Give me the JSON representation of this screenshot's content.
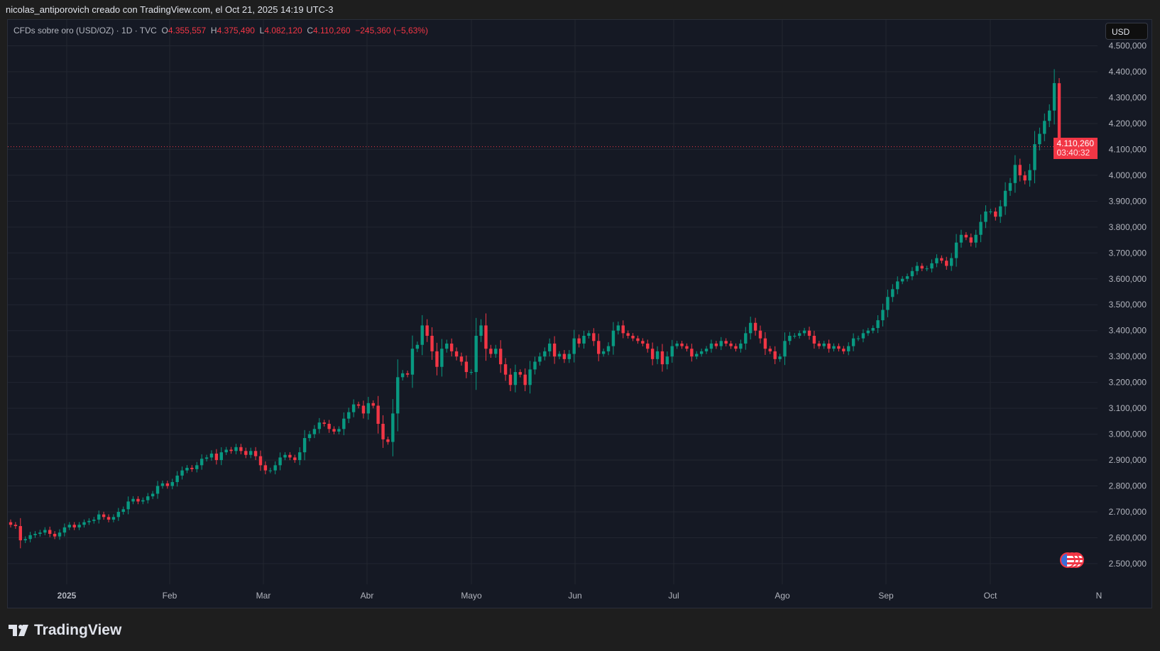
{
  "attribution": "nicolas_antiporovich creado con TradingView.com, el Oct 21, 2025 14:19 UTC-3",
  "legend": {
    "symbol": "CFDs sobre oro (USD/OZ) · 1D · TVC",
    "o_label": "O",
    "o": "4.355,557",
    "h_label": "H",
    "h": "4.375,490",
    "l_label": "L",
    "l": "4.082,120",
    "c_label": "C",
    "c": "4.110,260",
    "change": "−245,360 (−5,63%)"
  },
  "currency_button": "USD",
  "last_price": {
    "value": "4.110,260",
    "countdown": "03:40:32",
    "price": 4110.26
  },
  "brand": "TradingView",
  "colors": {
    "up": "#089981",
    "down": "#f23645",
    "grid": "#222631",
    "bg": "#151924"
  },
  "chart_data": {
    "type": "candlestick",
    "ylim": [
      2400,
      4530
    ],
    "yticks": [
      2500,
      2600,
      2700,
      2800,
      2900,
      3000,
      3100,
      3200,
      3300,
      3400,
      3500,
      3600,
      3700,
      3800,
      3900,
      4000,
      4100,
      4200,
      4300,
      4400,
      4500
    ],
    "ytick_labels": [
      "2.500,000",
      "2.600,000",
      "2.700,000",
      "2.800,000",
      "2.900,000",
      "3.000,000",
      "3.100,000",
      "3.200,000",
      "3.300,000",
      "3.400,000",
      "3.500,000",
      "3.600,000",
      "3.700,000",
      "3.800,000",
      "3.900,000",
      "4.000,000",
      "4.100,000",
      "4.200,000",
      "4.300,000",
      "4.400,000",
      "4.500,000"
    ],
    "xtick_labels": [
      "2025",
      "Feb",
      "Mar",
      "Abr",
      "Mayo",
      "Jun",
      "Jul",
      "Ago",
      "Sep",
      "Oct",
      "N"
    ],
    "first_open": 2660,
    "closes": [
      2650,
      2645,
      2590,
      2595,
      2610,
      2615,
      2620,
      2630,
      2615,
      2605,
      2620,
      2640,
      2650,
      2640,
      2650,
      2660,
      2665,
      2670,
      2690,
      2680,
      2670,
      2680,
      2700,
      2710,
      2740,
      2750,
      2740,
      2745,
      2760,
      2770,
      2800,
      2810,
      2800,
      2815,
      2840,
      2860,
      2870,
      2865,
      2880,
      2905,
      2910,
      2925,
      2900,
      2930,
      2940,
      2935,
      2950,
      2935,
      2920,
      2935,
      2915,
      2880,
      2860,
      2860,
      2880,
      2910,
      2920,
      2910,
      2900,
      2930,
      2985,
      3000,
      3020,
      3045,
      3040,
      3020,
      3010,
      3020,
      3060,
      3085,
      3115,
      3110,
      3080,
      3120,
      3110,
      3040,
      2980,
      2970,
      3080,
      3220,
      3235,
      3230,
      3330,
      3345,
      3420,
      3380,
      3320,
      3260,
      3330,
      3350,
      3320,
      3300,
      3280,
      3240,
      3240,
      3380,
      3420,
      3330,
      3310,
      3330,
      3270,
      3230,
      3190,
      3240,
      3230,
      3190,
      3250,
      3280,
      3300,
      3320,
      3350,
      3300,
      3310,
      3290,
      3310,
      3370,
      3350,
      3380,
      3390,
      3360,
      3310,
      3320,
      3340,
      3400,
      3420,
      3390,
      3380,
      3370,
      3360,
      3350,
      3330,
      3290,
      3320,
      3270,
      3300,
      3340,
      3350,
      3340,
      3330,
      3300,
      3310,
      3320,
      3330,
      3350,
      3340,
      3360,
      3350,
      3340,
      3330,
      3350,
      3390,
      3430,
      3400,
      3370,
      3330,
      3320,
      3290,
      3300,
      3360,
      3380,
      3380,
      3390,
      3400,
      3380,
      3350,
      3340,
      3350,
      3330,
      3340,
      3330,
      3320,
      3340,
      3370,
      3370,
      3390,
      3400,
      3410,
      3440,
      3480,
      3530,
      3560,
      3590,
      3600,
      3610,
      3630,
      3650,
      3640,
      3640,
      3660,
      3680,
      3670,
      3650,
      3680,
      3740,
      3770,
      3760,
      3740,
      3770,
      3820,
      3860,
      3860,
      3840,
      3880,
      3940,
      3970,
      4040,
      4000,
      3980,
      4020,
      4120,
      4160,
      4210,
      4250,
      4356
    ],
    "last_candle": {
      "o": 4355.557,
      "h": 4375.49,
      "l": 4082.12,
      "c": 4110.26
    }
  }
}
